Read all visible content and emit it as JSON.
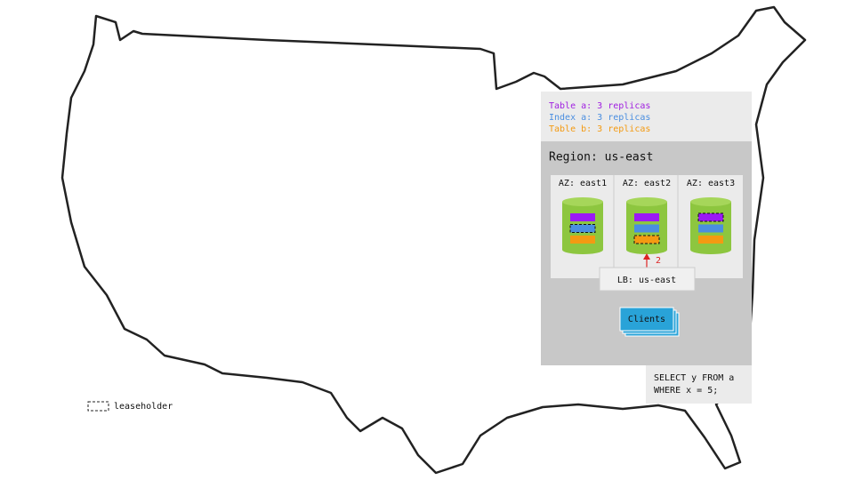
{
  "legend": {
    "lines": [
      "Table a: 3 replicas",
      "Index a: 3 replicas",
      "Table b: 3 replicas"
    ]
  },
  "region": {
    "title": "Region: us-east",
    "zones": [
      "AZ: east1",
      "AZ: east2",
      "AZ: east3"
    ],
    "arrow_label": "2",
    "load_balancer": "LB: us-east",
    "clients": "Clients"
  },
  "query": {
    "lines": [
      "SELECT y FROM a",
      "WHERE x = 5;"
    ]
  },
  "key": {
    "label": "leaseholder"
  }
}
